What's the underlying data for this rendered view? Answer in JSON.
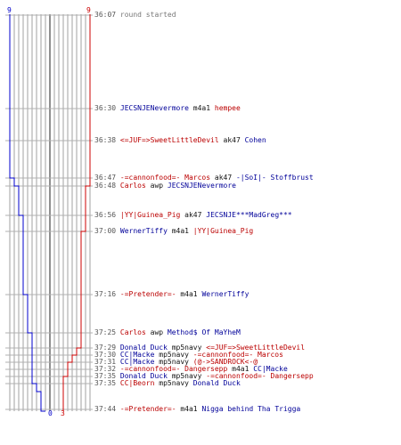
{
  "colors": {
    "team_blue": "#0000cc",
    "team_red": "#cc0000",
    "grid": "#a0a0a0",
    "center": "#222222"
  },
  "scores": {
    "blue_start": "9",
    "red_start": "9",
    "blue_end": "0",
    "red_end": "3"
  },
  "events": [
    {
      "time": "36:07",
      "parts": [
        {
          "text": "round started",
          "cls": "gray"
        }
      ]
    },
    {
      "time": "36:30",
      "parts": [
        {
          "text": "JECSNJENevermore",
          "cls": "blue"
        },
        {
          "text": " m4a1 ",
          "cls": "blk"
        },
        {
          "text": "hempee",
          "cls": "red"
        }
      ]
    },
    {
      "time": "36:38",
      "parts": [
        {
          "text": "<=JUF=>SweetLittleDevil",
          "cls": "red"
        },
        {
          "text": " ak47 ",
          "cls": "blk"
        },
        {
          "text": "Cohen",
          "cls": "blue"
        }
      ]
    },
    {
      "time": "36:47",
      "parts": [
        {
          "text": "-=cannonfood=- Marcos",
          "cls": "red"
        },
        {
          "text": " ak47 ",
          "cls": "blk"
        },
        {
          "text": "-|SoI|- Stoffbrust",
          "cls": "blue"
        }
      ]
    },
    {
      "time": "36:48",
      "parts": [
        {
          "text": "Carlos",
          "cls": "red"
        },
        {
          "text": " awp ",
          "cls": "blk"
        },
        {
          "text": "JECSNJENevermore",
          "cls": "blue"
        }
      ]
    },
    {
      "time": "36:56",
      "parts": [
        {
          "text": "|YY|Guinea_Pig",
          "cls": "red"
        },
        {
          "text": " ak47 ",
          "cls": "blk"
        },
        {
          "text": "JECSNJE***MadGreg***",
          "cls": "blue"
        }
      ]
    },
    {
      "time": "37:00",
      "parts": [
        {
          "text": "WernerTiffy",
          "cls": "blue"
        },
        {
          "text": " m4a1 ",
          "cls": "blk"
        },
        {
          "text": "|YY|Guinea_Pig",
          "cls": "red"
        }
      ]
    },
    {
      "time": "37:16",
      "parts": [
        {
          "text": "-=Pretender=-",
          "cls": "red"
        },
        {
          "text": " m4a1 ",
          "cls": "blk"
        },
        {
          "text": "WernerTiffy",
          "cls": "blue"
        }
      ]
    },
    {
      "time": "37:25",
      "parts": [
        {
          "text": "Carlos",
          "cls": "red"
        },
        {
          "text": " awp ",
          "cls": "blk"
        },
        {
          "text": "Method$ Of MaYheM",
          "cls": "blue"
        }
      ]
    },
    {
      "time": "37:29",
      "parts": [
        {
          "text": "Donald Duck",
          "cls": "blue"
        },
        {
          "text": " mp5navy ",
          "cls": "blk"
        },
        {
          "text": "<=JUF=>SweetLittleDevil",
          "cls": "red"
        }
      ]
    },
    {
      "time": "37:30",
      "parts": [
        {
          "text": "CC|Macke",
          "cls": "blue"
        },
        {
          "text": " mp5navy ",
          "cls": "blk"
        },
        {
          "text": "-=cannonfood=- Marcos",
          "cls": "red"
        }
      ]
    },
    {
      "time": "37:31",
      "parts": [
        {
          "text": "CC|Macke",
          "cls": "blue"
        },
        {
          "text": " mp5navy ",
          "cls": "blk"
        },
        {
          "text": "(@->SANDROCK<-@",
          "cls": "red"
        }
      ]
    },
    {
      "time": "37:32",
      "parts": [
        {
          "text": "-=cannonfood=- Dangersepp",
          "cls": "red"
        },
        {
          "text": " m4a1 ",
          "cls": "blk"
        },
        {
          "text": "CC|Macke",
          "cls": "blue"
        }
      ]
    },
    {
      "time": "37:35",
      "parts": [
        {
          "text": "Donald Duck",
          "cls": "blue"
        },
        {
          "text": " mp5navy ",
          "cls": "blk"
        },
        {
          "text": "-=cannonfood=- Dangersepp",
          "cls": "red"
        }
      ]
    },
    {
      "time": "37:35",
      "parts": [
        {
          "text": "CC|Beorn",
          "cls": "red"
        },
        {
          "text": " mp5navy ",
          "cls": "blk"
        },
        {
          "text": "Donald Duck",
          "cls": "blue"
        }
      ]
    },
    {
      "time": "37:44",
      "parts": [
        {
          "text": "-=Pretender=-",
          "cls": "red"
        },
        {
          "text": " m4a1 ",
          "cls": "blk"
        },
        {
          "text": "Nigga behind Tha Trigga",
          "cls": "blue"
        }
      ]
    }
  ]
}
